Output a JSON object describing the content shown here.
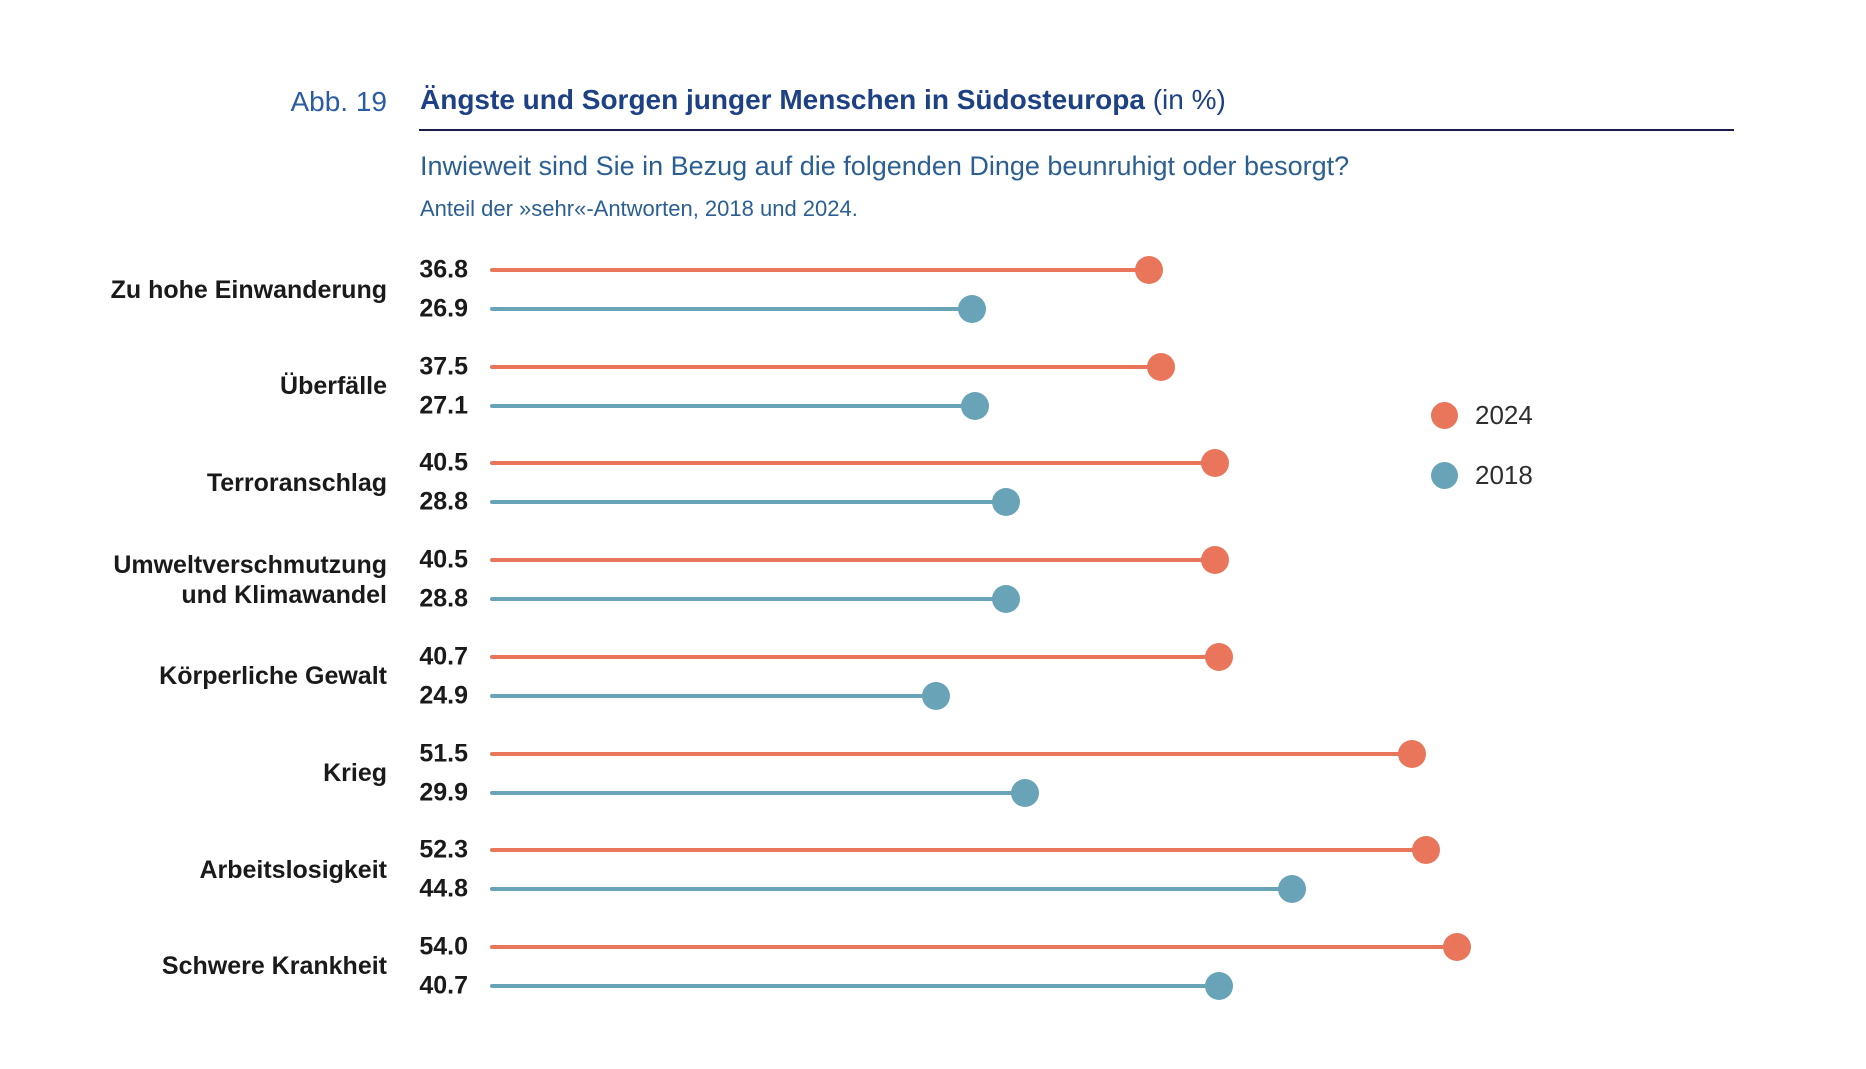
{
  "figure": {
    "label": "Abb. 19",
    "title": "Ängste und Sorgen junger Menschen in Südosteuropa",
    "title_suffix": " (in %)",
    "question": "Inwieweit sind Sie in Bezug auf die folgenden Dinge beunruhigt oder besorgt?",
    "note": "Anteil der »sehr«-Antworten, 2018 und 2024."
  },
  "legend": [
    {
      "label": "2024",
      "color": "#E9755A"
    },
    {
      "label": "2018",
      "color": "#69A3B7"
    }
  ],
  "colors": {
    "accent_2024": "#E9755A",
    "accent_2018": "#69A3B7",
    "title_navy": "#1d4184",
    "subtitle_blue": "#2b5f94",
    "rule_navy": "#1a1c4e",
    "text_black": "#1a1a1a"
  },
  "chart_data": {
    "type": "bar",
    "subtype": "lollipop",
    "orientation": "horizontal",
    "title": "Ängste und Sorgen junger Menschen in Südosteuropa (in %)",
    "subtitle": "Inwieweit sind Sie in Bezug auf die folgenden Dinge beunruhigt oder besorgt?",
    "note": "Anteil der »sehr«-Antworten, 2018 und 2024.",
    "xlabel": "",
    "ylabel": "",
    "xlim": [
      0,
      60
    ],
    "grid": false,
    "legend_position": "right",
    "value_labels_shown": true,
    "categories": [
      "Zu hohe Einwanderung",
      "Überfälle",
      "Terroranschlag",
      "Umweltverschmutzung und Klimawandel",
      "Körperliche Gewalt",
      "Krieg",
      "Arbeitslosigkeit",
      "Schwere Krankheit"
    ],
    "series": [
      {
        "name": "2024",
        "color": "#E9755A",
        "values": [
          36.8,
          37.5,
          40.5,
          40.5,
          40.7,
          51.5,
          52.3,
          54.0
        ],
        "value_labels": [
          "36.8",
          "37.5",
          "40.5",
          "40.5",
          "40.7",
          "51.5",
          "52.3",
          "54.0"
        ]
      },
      {
        "name": "2018",
        "color": "#69A3B7",
        "values": [
          26.9,
          27.1,
          28.8,
          28.8,
          24.9,
          29.9,
          44.8,
          40.7
        ],
        "value_labels": [
          "26.9",
          "27.1",
          "28.8",
          "28.8",
          "24.9",
          "29.9",
          "44.8",
          "40.7"
        ]
      }
    ]
  }
}
